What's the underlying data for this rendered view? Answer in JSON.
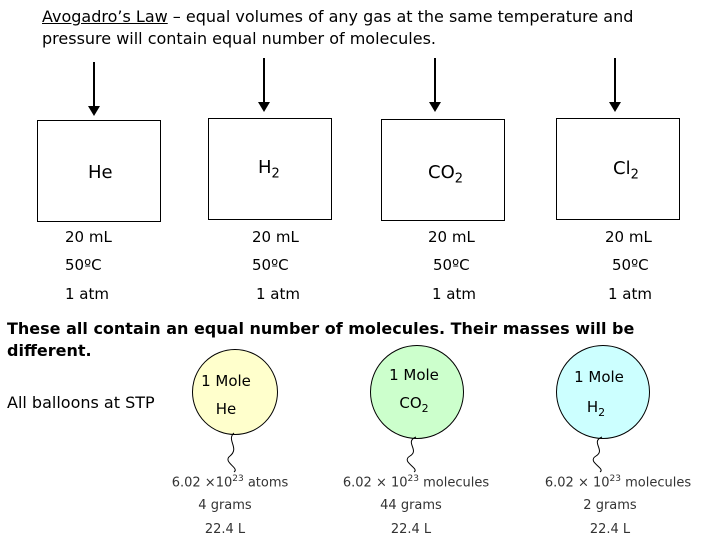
{
  "title": {
    "term": "Avogadro’s Law",
    "text": " – equal volumes of any gas at the same temperature and pressure will contain equal number of molecules."
  },
  "containers": [
    {
      "gas": "He",
      "sub": "",
      "volume": "20 mL",
      "temp": "50ºC",
      "pressure": "1 atm"
    },
    {
      "gas": "H",
      "sub": "2",
      "volume": "20 mL",
      "temp": "50ºC",
      "pressure": "1 atm"
    },
    {
      "gas": "CO",
      "sub": "2",
      "volume": "20 mL",
      "temp": "50ºC",
      "pressure": "1 atm"
    },
    {
      "gas": "Cl",
      "sub": "2",
      "volume": "20 mL",
      "temp": "50ºC",
      "pressure": "1 atm"
    }
  ],
  "statement": "These all contain an equal number of molecules. Their masses will be different.",
  "stp_label": "All balloons at STP",
  "balloons": [
    {
      "mole": "1 Mole",
      "gas": "He",
      "sub": "",
      "count_prefix": "6.02 ×10",
      "count_exp": "23",
      "count_unit": " atoms",
      "mass": "4 grams",
      "volume": "22.4 L",
      "color": "#ffffcc"
    },
    {
      "mole": "1 Mole",
      "gas": "CO",
      "sub": "2",
      "count_prefix": "6.02 × 10",
      "count_exp": "23",
      "count_unit": " molecules",
      "mass": "44 grams",
      "volume": "22.4 L",
      "color": "#ccffcc"
    },
    {
      "mole": "1 Mole",
      "gas": "H",
      "sub": "2",
      "count_prefix": "6.02 × 10",
      "count_exp": "23",
      "count_unit": " molecules",
      "mass": "2 grams",
      "volume": "22.4 L",
      "color": "#ccffff"
    }
  ]
}
